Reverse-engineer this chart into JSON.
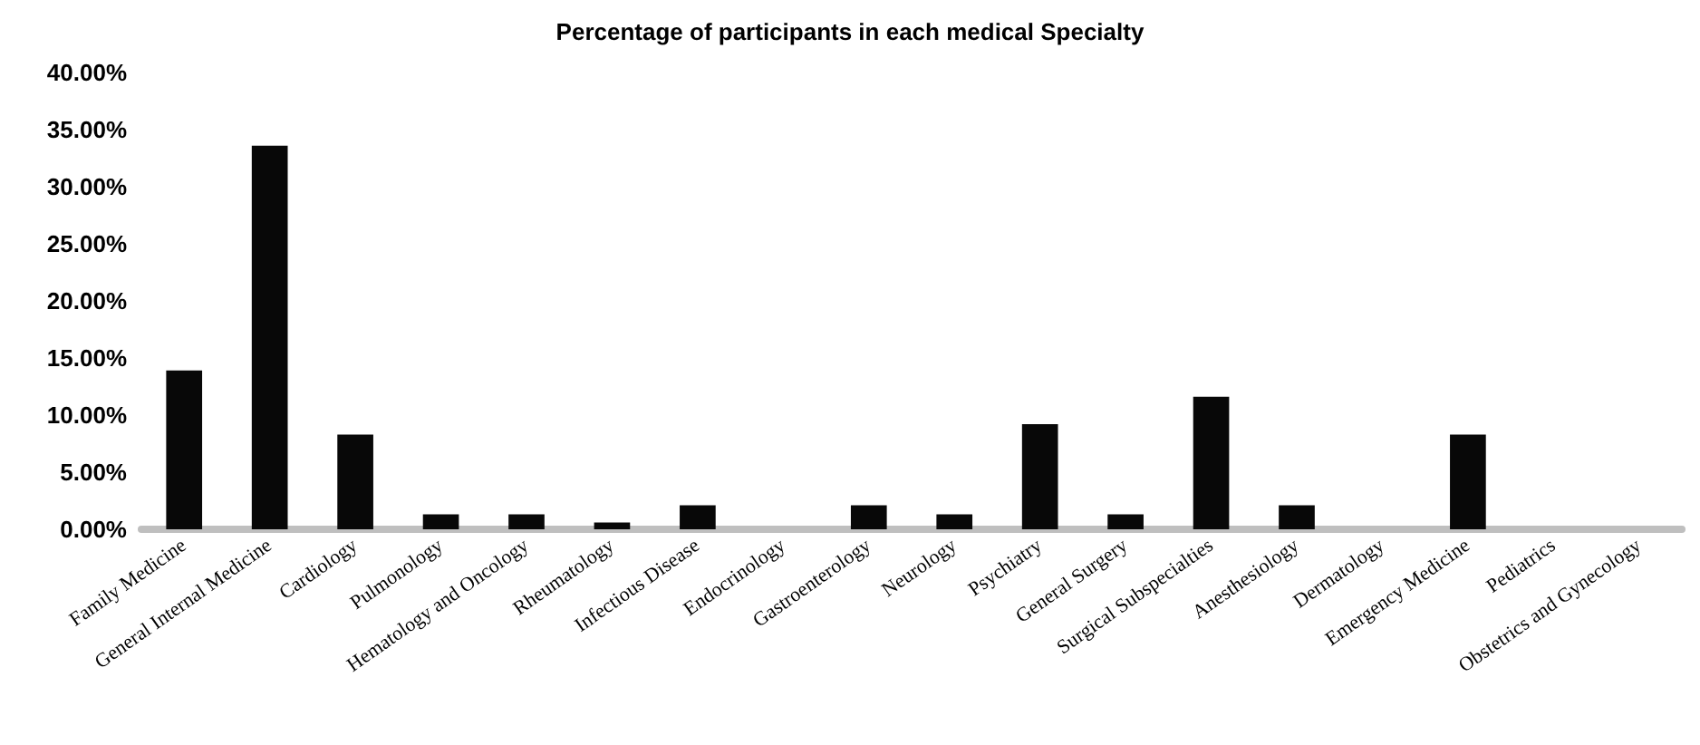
{
  "chart_data": {
    "type": "bar",
    "title": "Percentage of participants in each medical Specialty",
    "categories": [
      "Family Medicine",
      "General Internal Medicine",
      "Cardiology",
      "Pulmonology",
      "Hematology and Oncology",
      "Rheumatology",
      "Infectious Disease",
      "Endocrinology",
      "Gastroenterology",
      "Neurology",
      "Psychiatry",
      "General Surgery",
      "Surgical Subspecialties",
      "Anesthesiology",
      "Dermatology",
      "Emergency Medicine",
      "Pediatrics",
      "Obstetrics and Gynecology"
    ],
    "values": [
      13.9,
      33.6,
      8.3,
      1.3,
      1.3,
      0.6,
      2.1,
      0,
      2.1,
      1.3,
      9.2,
      1.3,
      11.6,
      2.1,
      0,
      8.3,
      0,
      0
    ],
    "color": "#080808",
    "ylim": [
      0,
      40
    ],
    "yticks": [
      {
        "value": 0,
        "label": "0.00%"
      },
      {
        "value": 5,
        "label": "5.00%"
      },
      {
        "value": 10,
        "label": "10.00%"
      },
      {
        "value": 15,
        "label": "15.00%"
      },
      {
        "value": 20,
        "label": "20.00%"
      },
      {
        "value": 25,
        "label": "25.00%"
      },
      {
        "value": 30,
        "label": "30.00%"
      },
      {
        "value": 35,
        "label": "35.00%"
      },
      {
        "value": 40,
        "label": "40.00%"
      }
    ],
    "grid": false
  }
}
